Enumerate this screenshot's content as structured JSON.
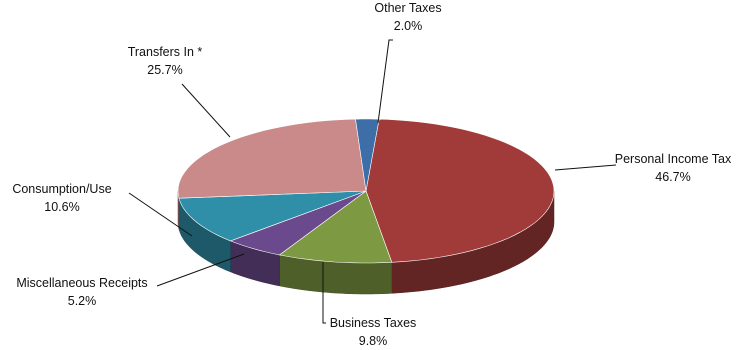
{
  "chart_data": {
    "type": "pie",
    "style": "3d",
    "title": "",
    "series": [
      {
        "name": "Personal Income Tax",
        "value": 46.7,
        "value_label": "46.7%",
        "color": "#a03b3a"
      },
      {
        "name": "Business Taxes",
        "value": 9.8,
        "value_label": "9.8%",
        "color": "#7d9a42"
      },
      {
        "name": "Miscellaneous Receipts",
        "value": 5.2,
        "value_label": "5.2%",
        "color": "#6a4a8d"
      },
      {
        "name": "Consumption/Use",
        "value": 10.6,
        "value_label": "10.6%",
        "color": "#2f8fa8"
      },
      {
        "name": "Transfers In *",
        "value": 25.7,
        "value_label": "25.7%",
        "color": "#c98a89"
      },
      {
        "name": "Other Taxes",
        "value": 2.0,
        "value_label": "2.0%",
        "color": "#3e6ea8"
      }
    ],
    "legend": "none"
  }
}
